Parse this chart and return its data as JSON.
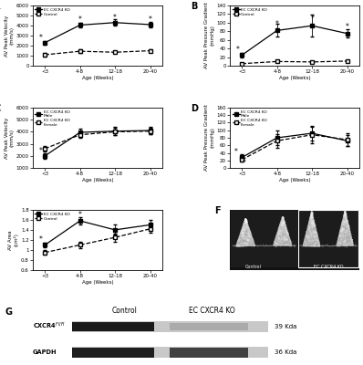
{
  "xticklabels": [
    "<3",
    "4-8",
    "12-18",
    "20-40"
  ],
  "xvals": [
    0,
    1,
    2,
    3
  ],
  "A_ko": [
    2300,
    4050,
    4300,
    4100
  ],
  "A_ko_err": [
    200,
    200,
    300,
    250
  ],
  "A_ctrl": [
    1100,
    1450,
    1350,
    1500
  ],
  "A_ctrl_err": [
    150,
    150,
    100,
    150
  ],
  "A_ylabel": "AV Peak Velocity\n(mm/s)",
  "A_ylim": [
    0,
    6000
  ],
  "A_yticks": [
    0,
    1000,
    2000,
    3000,
    4000,
    5000,
    6000
  ],
  "B_ko": [
    25,
    82,
    93,
    75
  ],
  "B_ko_err": [
    5,
    15,
    25,
    10
  ],
  "B_ctrl": [
    5,
    10,
    9,
    11
  ],
  "B_ctrl_err": [
    2,
    2,
    2,
    2
  ],
  "B_ylabel": "AV Peak Pressure Gradient\n(mmHg)",
  "B_ylim": [
    0,
    140
  ],
  "B_yticks": [
    0,
    20,
    40,
    60,
    80,
    100,
    120,
    140
  ],
  "C_male": [
    2000,
    3950,
    4050,
    4100
  ],
  "C_male_err": [
    250,
    300,
    350,
    300
  ],
  "C_female": [
    2600,
    3750,
    4000,
    4050
  ],
  "C_female_err": [
    200,
    250,
    300,
    250
  ],
  "C_ylabel": "AV Peak Velocity\n(mm/s)",
  "C_ylim": [
    1000,
    6000
  ],
  "C_yticks": [
    1000,
    2000,
    3000,
    4000,
    5000,
    6000
  ],
  "D_male": [
    28,
    80,
    92,
    72
  ],
  "D_male_err": [
    8,
    20,
    20,
    15
  ],
  "D_female": [
    22,
    72,
    88,
    75
  ],
  "D_female_err": [
    6,
    18,
    22,
    18
  ],
  "D_ylabel": "AV Peak Pressure Gradient\n(mmHg)",
  "D_ylim": [
    0,
    160
  ],
  "D_yticks": [
    0,
    20,
    40,
    60,
    80,
    100,
    120,
    140,
    160
  ],
  "E_ko": [
    1.1,
    1.58,
    1.4,
    1.5
  ],
  "E_ko_err": [
    0.05,
    0.08,
    0.1,
    0.1
  ],
  "E_ctrl": [
    0.95,
    1.1,
    1.25,
    1.42
  ],
  "E_ctrl_err": [
    0.04,
    0.06,
    0.08,
    0.08
  ],
  "E_ylabel": "AV Area\n(cm²)",
  "E_ylim": [
    0.6,
    1.8
  ],
  "E_yticks": [
    0.6,
    0.8,
    1.0,
    1.2,
    1.4,
    1.6,
    1.8
  ],
  "xlabel": "Age (Weeks)",
  "bg_color": "#ffffff"
}
